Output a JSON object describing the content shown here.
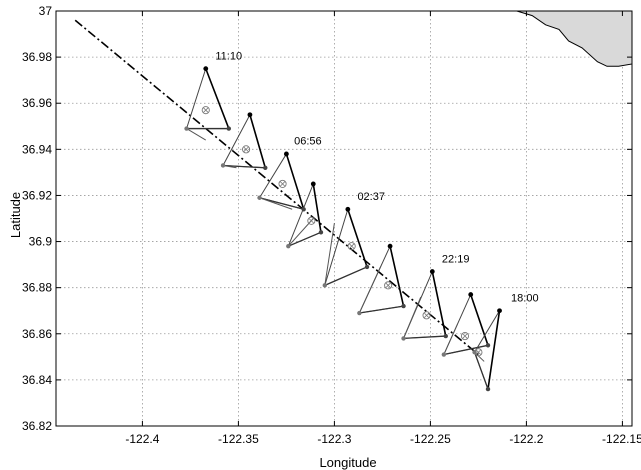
{
  "chart_data": {
    "type": "scatter",
    "xlabel": "Longitude",
    "ylabel": "Latitude",
    "xlim": [
      -122.445,
      -122.145
    ],
    "ylim": [
      36.82,
      37.0
    ],
    "xticks": [
      -122.4,
      -122.35,
      -122.3,
      -122.25,
      -122.2,
      -122.15
    ],
    "yticks": [
      36.82,
      36.84,
      36.86,
      36.88,
      36.9,
      36.92,
      36.94,
      36.96,
      36.98,
      37.0
    ],
    "xtick_labels": [
      "-122.4",
      "-122.35",
      "-122.3",
      "-122.25",
      "-122.2",
      "-122.15"
    ],
    "ytick_labels": [
      "36.82",
      "36.84",
      "36.86",
      "36.88",
      "36.9",
      "36.92",
      "36.94",
      "36.96",
      "36.98",
      "37"
    ],
    "grid": true,
    "land_coastline": [
      [
        -122.205,
        37.0
      ],
      [
        -122.197,
        36.998
      ],
      [
        -122.19,
        36.994
      ],
      [
        -122.183,
        36.992
      ],
      [
        -122.178,
        36.987
      ],
      [
        -122.171,
        36.984
      ],
      [
        -122.163,
        36.978
      ],
      [
        -122.158,
        36.976
      ],
      [
        -122.152,
        36.976
      ],
      [
        -122.145,
        36.977
      ]
    ],
    "trackline": [
      [
        -122.435,
        36.996
      ],
      [
        -122.225,
        36.851
      ]
    ],
    "triangles": [
      {
        "label": "11:10",
        "top": [
          -122.367,
          36.975
        ],
        "left": [
          -122.377,
          36.949
        ],
        "right": [
          -122.355,
          36.949
        ],
        "center": [
          -122.367,
          36.957
        ],
        "tail": [
          -122.367,
          36.944
        ]
      },
      {
        "label": "",
        "top": [
          -122.344,
          36.955
        ],
        "left": [
          -122.358,
          36.933
        ],
        "right": [
          -122.336,
          36.932
        ],
        "center": [
          -122.346,
          36.94
        ],
        "tail": [
          -122.351,
          36.932
        ]
      },
      {
        "label": "06:56",
        "top": [
          -122.325,
          36.938
        ],
        "left": [
          -122.339,
          36.919
        ],
        "right": [
          -122.316,
          36.914
        ],
        "center": [
          -122.327,
          36.925
        ],
        "tail": [
          -122.322,
          36.914
        ]
      },
      {
        "label": "",
        "top": [
          -122.311,
          36.925
        ],
        "left": [
          -122.324,
          36.898
        ],
        "right": [
          -122.307,
          36.904
        ],
        "center": [
          -122.312,
          36.909
        ],
        "tail": [
          -122.311,
          36.91
        ]
      },
      {
        "label": "02:37",
        "top": [
          -122.293,
          36.914
        ],
        "left": [
          -122.305,
          36.881
        ],
        "right": [
          -122.283,
          36.889
        ],
        "center": [
          -122.291,
          36.898
        ],
        "tail": [
          -122.3,
          36.908
        ]
      },
      {
        "label": "",
        "top": [
          -122.271,
          36.898
        ],
        "left": [
          -122.287,
          36.869
        ],
        "right": [
          -122.264,
          36.872
        ],
        "center": [
          -122.272,
          36.881
        ],
        "tail": [
          -122.276,
          36.889
        ]
      },
      {
        "label": "22:19",
        "top": [
          -122.249,
          36.887
        ],
        "left": [
          -122.264,
          36.858
        ],
        "right": [
          -122.242,
          36.859
        ],
        "center": [
          -122.252,
          36.868
        ],
        "tail": [
          -122.255,
          36.876
        ]
      },
      {
        "label": "",
        "top": [
          -122.229,
          36.877
        ],
        "left": [
          -122.243,
          36.851
        ],
        "right": [
          -122.22,
          36.855
        ],
        "center": [
          -122.232,
          36.859
        ],
        "tail": [
          -122.236,
          36.864
        ]
      },
      {
        "label": "18:00",
        "top": [
          -122.214,
          36.87
        ],
        "left": [
          -122.227,
          36.852
        ],
        "right": [
          -122.22,
          36.836
        ],
        "center": [
          -122.225,
          36.852
        ],
        "tail": [
          -122.222,
          36.848
        ]
      }
    ],
    "label_offsets": {
      "11:10": [
        -122.362,
        36.979
      ],
      "06:56": [
        -122.321,
        36.942
      ],
      "02:37": [
        -122.288,
        36.918
      ],
      "22:19": [
        -122.244,
        36.891
      ],
      "18:00": [
        -122.208,
        36.874
      ]
    }
  }
}
